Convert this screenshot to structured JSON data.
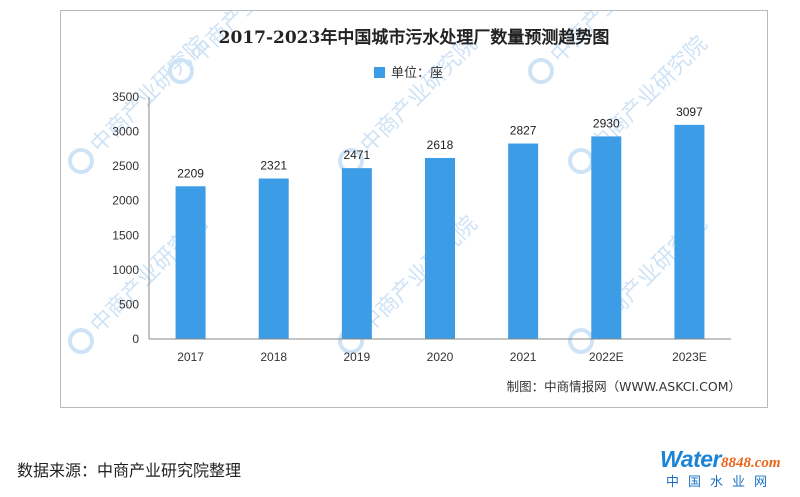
{
  "chart_data": {
    "type": "bar",
    "title": "2017-2023年中国城市污水处理厂数量预测趋势图",
    "legend": {
      "label": "单位：座",
      "position": "top-center"
    },
    "categories": [
      "2017",
      "2018",
      "2019",
      "2020",
      "2021",
      "2022E",
      "2023E"
    ],
    "series": [
      {
        "values": [
          2209,
          2321,
          2471,
          2618,
          2827,
          2930,
          3097
        ]
      }
    ],
    "ylim": [
      0,
      3500
    ],
    "yticks": [
      0,
      500,
      1000,
      1500,
      2000,
      2500,
      3000,
      3500
    ],
    "grid": false,
    "bar_color": "#3d9ce6"
  },
  "credit": "制图：中商情报网（WWW.ASKCI.COM）",
  "watermark": "中商产业研究院",
  "source_note": "数据来源：中商产业研究院整理",
  "brand": {
    "name_part1": "Water",
    "name_part2": "8848",
    "suffix": ".com",
    "subtitle": "中国水业网"
  }
}
